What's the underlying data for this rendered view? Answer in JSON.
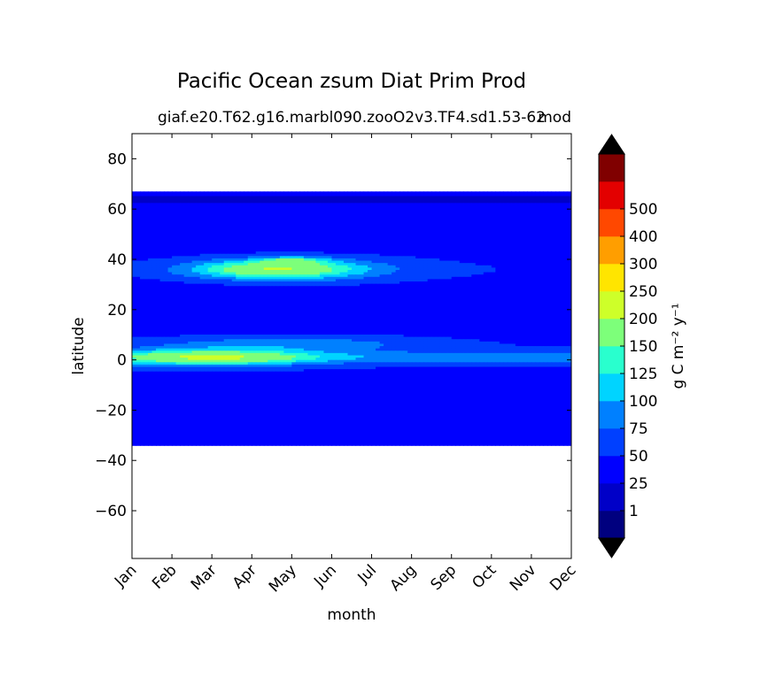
{
  "chart_data": {
    "type": "heatmap",
    "title": "Pacific Ocean zsum Diat Prim Prod",
    "subtitle": "giaf.e20.T62.g16.marbl090.zooO2v3.TF4.sd1.53-62",
    "subtitle_overlap": "mod",
    "xlabel": "month",
    "ylabel": "latitude",
    "x_ticks": [
      "Jan",
      "Feb",
      "Mar",
      "Apr",
      "May",
      "Jun",
      "Jul",
      "Aug",
      "Sep",
      "Oct",
      "Nov",
      "Dec"
    ],
    "y_ticks": [
      80,
      60,
      40,
      20,
      0,
      -20,
      -40,
      -60
    ],
    "ylim": [
      -79,
      90
    ],
    "data_lat_range": [
      -34,
      67
    ],
    "colorbar": {
      "label": "g C m⁻² y⁻¹",
      "levels": [
        "1",
        "25",
        "50",
        "75",
        "100",
        "125",
        "150",
        "200",
        "250",
        "300",
        "400",
        "500"
      ],
      "colors": [
        "#00007f",
        "#0000c8",
        "#0000ff",
        "#0040ff",
        "#0080ff",
        "#00d4ff",
        "#29ffce",
        "#7dff7a",
        "#ceff29",
        "#ffe500",
        "#ff9e00",
        "#ff4800",
        "#e30000",
        "#800000"
      ],
      "extend": "both",
      "under_color": "#000000",
      "over_color": "#000000"
    },
    "features": [
      {
        "region": "background 20-65N and 20-34S",
        "range": "25-50"
      },
      {
        "region": "subtropical N band 25-40N",
        "range": "75-150",
        "peak": "200-250 near 40N, May"
      },
      {
        "region": "equatorial band 5S-10N",
        "range": "75-150",
        "peak": "150-200 near 0, Feb-Apr"
      }
    ]
  }
}
